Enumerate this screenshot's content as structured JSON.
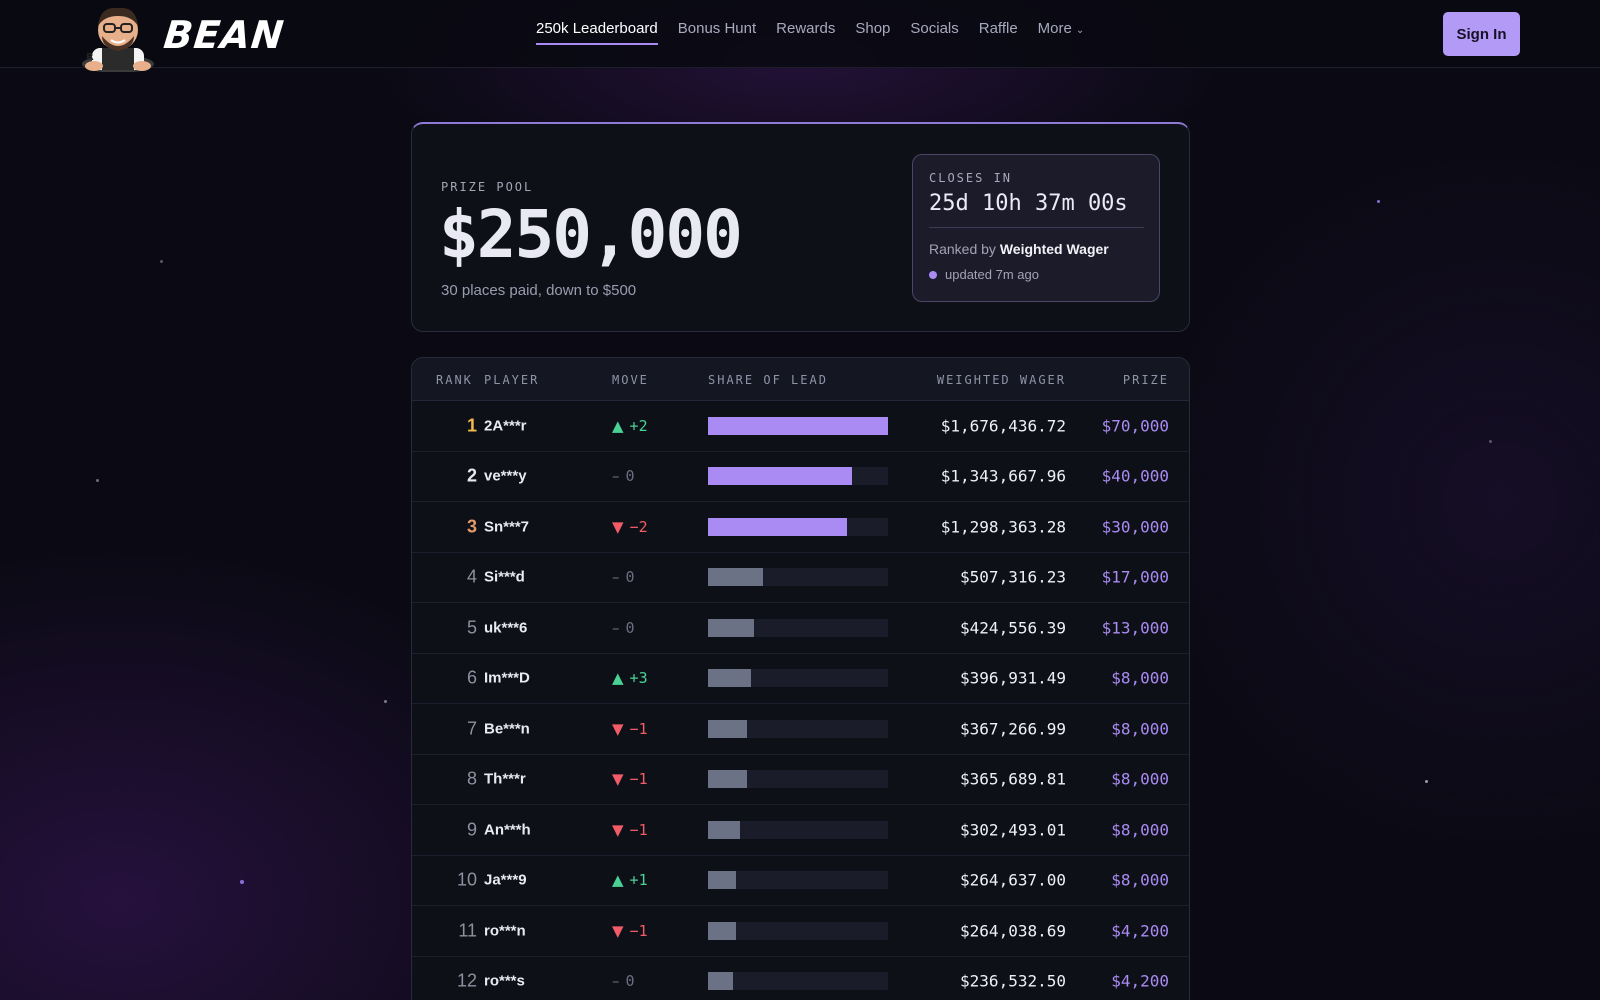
{
  "brand": {
    "name": "BEAN"
  },
  "nav": {
    "items": [
      {
        "label": "250k Leaderboard",
        "active": true
      },
      {
        "label": "Bonus Hunt"
      },
      {
        "label": "Rewards"
      },
      {
        "label": "Shop"
      },
      {
        "label": "Socials"
      },
      {
        "label": "Raffle"
      },
      {
        "label": "More",
        "icon": "chevron-down-icon"
      }
    ],
    "sign_in": "Sign In"
  },
  "prize": {
    "label": "PRIZE POOL",
    "amount": "$250,000",
    "sub": "30 places paid, down to $500",
    "closes_label": "CLOSES IN",
    "timer": "25d 10h 37m 00s",
    "ranked_prefix": "Ranked by ",
    "ranked_by": "Weighted Wager",
    "updated": "updated 7m ago"
  },
  "table": {
    "headers": [
      "RANK",
      "PLAYER",
      "MOVE",
      "SHARE OF LEAD",
      "WEIGHTED WAGER",
      "PRIZE"
    ],
    "rows": [
      {
        "rank": "1",
        "player": "2A***r",
        "move_dir": "up",
        "move": "+2",
        "share": 1.0,
        "wager": "$1,676,436.72",
        "prize": "$70,000"
      },
      {
        "rank": "2",
        "player": "ve***y",
        "move_dir": "flat",
        "move": "0",
        "share": 0.801,
        "wager": "$1,343,667.96",
        "prize": "$40,000"
      },
      {
        "rank": "3",
        "player": "Sn***7",
        "move_dir": "down",
        "move": "−2",
        "share": 0.774,
        "wager": "$1,298,363.28",
        "prize": "$30,000"
      },
      {
        "rank": "4",
        "player": "Si***d",
        "move_dir": "flat",
        "move": "0",
        "share": 0.303,
        "wager": "$507,316.23",
        "prize": "$17,000"
      },
      {
        "rank": "5",
        "player": "uk***6",
        "move_dir": "flat",
        "move": "0",
        "share": 0.253,
        "wager": "$424,556.39",
        "prize": "$13,000"
      },
      {
        "rank": "6",
        "player": "Im***D",
        "move_dir": "up",
        "move": "+3",
        "share": 0.237,
        "wager": "$396,931.49",
        "prize": "$8,000"
      },
      {
        "rank": "7",
        "player": "Be***n",
        "move_dir": "down",
        "move": "−1",
        "share": 0.219,
        "wager": "$367,266.99",
        "prize": "$8,000"
      },
      {
        "rank": "8",
        "player": "Th***r",
        "move_dir": "down",
        "move": "−1",
        "share": 0.218,
        "wager": "$365,689.81",
        "prize": "$8,000"
      },
      {
        "rank": "9",
        "player": "An***h",
        "move_dir": "down",
        "move": "−1",
        "share": 0.18,
        "wager": "$302,493.01",
        "prize": "$8,000"
      },
      {
        "rank": "10",
        "player": "Ja***9",
        "move_dir": "up",
        "move": "+1",
        "share": 0.158,
        "wager": "$264,637.00",
        "prize": "$8,000"
      },
      {
        "rank": "11",
        "player": "ro***n",
        "move_dir": "down",
        "move": "−1",
        "share": 0.157,
        "wager": "$264,038.69",
        "prize": "$4,200"
      },
      {
        "rank": "12",
        "player": "ro***s",
        "move_dir": "flat",
        "move": "0",
        "share": 0.141,
        "wager": "$236,532.50",
        "prize": "$4,200"
      }
    ]
  },
  "colors": {
    "accent": "#a98bf3",
    "top_bar": "#a98bf3",
    "other_bar": "#6b7285",
    "up": "#4ad295",
    "down": "#f25c67",
    "gold": "#f3b94d",
    "bronze": "#e39a6a"
  }
}
